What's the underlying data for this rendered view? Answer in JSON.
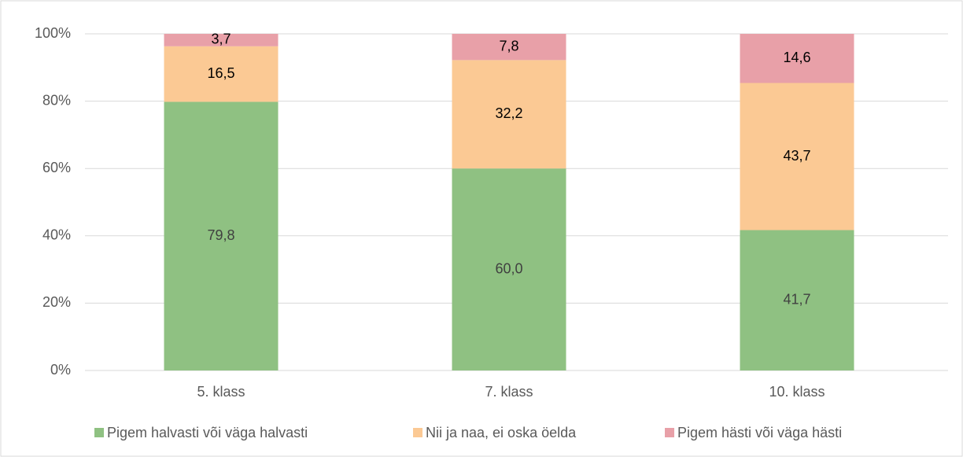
{
  "chart_data": {
    "type": "stacked_bar",
    "categories": [
      "5. klass",
      "7. klass",
      "10. klass"
    ],
    "series": [
      {
        "name": "Pigem halvasti või väga halvasti",
        "color": "#8fc182",
        "values": [
          79.8,
          60.0,
          41.7
        ],
        "value_labels": [
          "79,8",
          "60,0",
          "41,7"
        ]
      },
      {
        "name": "Nii ja naa, ei oska öelda",
        "color": "#fbc994",
        "values": [
          16.5,
          32.2,
          43.7
        ],
        "value_labels": [
          "16,5",
          "32,2",
          "43,7"
        ]
      },
      {
        "name": "Pigem hästi või väga hästi",
        "color": "#e8a0a8",
        "values": [
          3.7,
          7.8,
          14.6
        ],
        "value_labels": [
          "3,7",
          "7,8",
          "14,6"
        ]
      }
    ],
    "ylim": [
      0,
      100
    ],
    "yticks": [
      {
        "value": 0,
        "label": "0%"
      },
      {
        "value": 20,
        "label": "20%"
      },
      {
        "value": 40,
        "label": "40%"
      },
      {
        "value": 60,
        "label": "60%"
      },
      {
        "value": 80,
        "label": "80%"
      },
      {
        "value": 100,
        "label": "100%"
      }
    ],
    "grid": true,
    "legend": "bottom"
  }
}
